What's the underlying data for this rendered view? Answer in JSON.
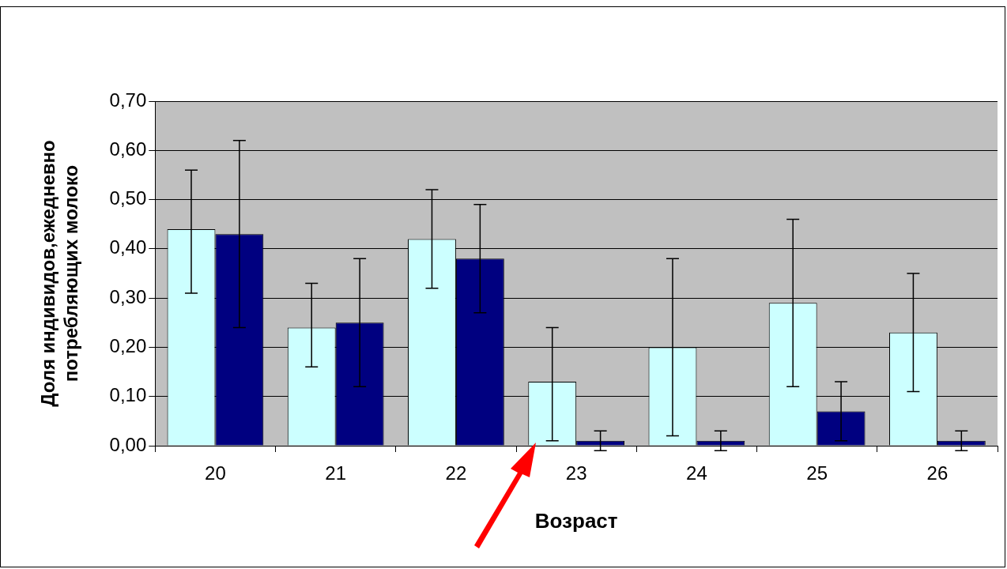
{
  "chart_data": {
    "type": "bar",
    "xlabel": "Возраст",
    "ylabel": "Доля индивидов,ежедневно потребляющих молоко",
    "categories": [
      "20",
      "21",
      "22",
      "23",
      "24",
      "25",
      "26"
    ],
    "series": [
      {
        "color": "#ccffff",
        "values": [
          0.44,
          0.24,
          0.42,
          0.13,
          0.2,
          0.29,
          0.23
        ],
        "errors": [
          [
            0.31,
            0.56
          ],
          [
            0.16,
            0.33
          ],
          [
            0.32,
            0.52
          ],
          [
            0.01,
            0.24
          ],
          [
            0.02,
            0.38
          ],
          [
            0.12,
            0.46
          ],
          [
            0.11,
            0.35
          ]
        ]
      },
      {
        "color": "#000080",
        "values": [
          0.43,
          0.25,
          0.38,
          0.01,
          0.01,
          0.07,
          0.01
        ],
        "errors": [
          0.19,
          0.13,
          0.11,
          0.02,
          0.02,
          0.06,
          0.02
        ]
      }
    ],
    "ylim": [
      0,
      0.7
    ],
    "yticks": [
      {
        "value": 0,
        "label": "0,00"
      },
      {
        "value": 0.1,
        "label": "0,10"
      },
      {
        "value": 0.2,
        "label": "0,20"
      },
      {
        "value": 0.3,
        "label": "0,30"
      },
      {
        "value": 0.4,
        "label": "0,40"
      },
      {
        "value": 0.5,
        "label": "0,50"
      },
      {
        "value": 0.6,
        "label": "0,60"
      },
      {
        "value": 0.7,
        "label": "0,70"
      }
    ],
    "grid": "y",
    "legend": false
  }
}
